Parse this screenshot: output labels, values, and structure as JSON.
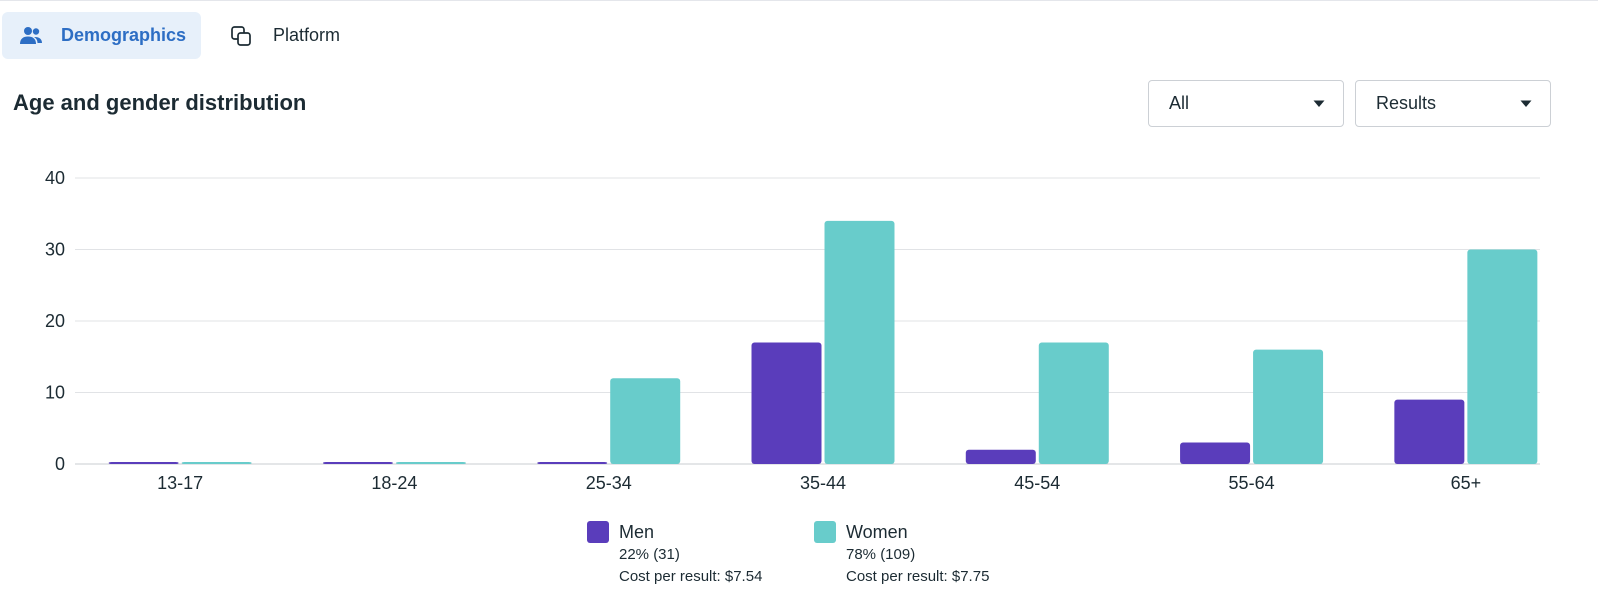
{
  "tabs": [
    {
      "label": "Demographics",
      "icon": "people-icon",
      "active": true
    },
    {
      "label": "Platform",
      "icon": "layers-icon",
      "active": false
    }
  ],
  "section": {
    "title": "Age and gender distribution"
  },
  "filters": {
    "audience": {
      "value": "All"
    },
    "metric": {
      "value": "Results"
    }
  },
  "colors": {
    "men": "#5a3dbb",
    "women": "#68cccb",
    "active_tab_bg": "#e7f0fa",
    "active_tab_text": "#2d6ec4"
  },
  "chart_data": {
    "type": "bar",
    "categories": [
      "13-17",
      "18-24",
      "25-34",
      "35-44",
      "45-54",
      "55-64",
      "65+"
    ],
    "series": [
      {
        "name": "Men",
        "values": [
          0,
          0,
          0,
          17,
          2,
          3,
          9
        ]
      },
      {
        "name": "Women",
        "values": [
          0,
          0,
          12,
          34,
          17,
          16,
          30
        ]
      }
    ],
    "yticks": [
      0,
      10,
      20,
      30,
      40
    ],
    "ylim": [
      0,
      40
    ],
    "grid": true,
    "legend_position": "bottom-center"
  },
  "legend": [
    {
      "name": "Men",
      "share": "22% (31)",
      "cost": "Cost per result: $7.54"
    },
    {
      "name": "Women",
      "share": "78% (109)",
      "cost": "Cost per result: $7.75"
    }
  ]
}
